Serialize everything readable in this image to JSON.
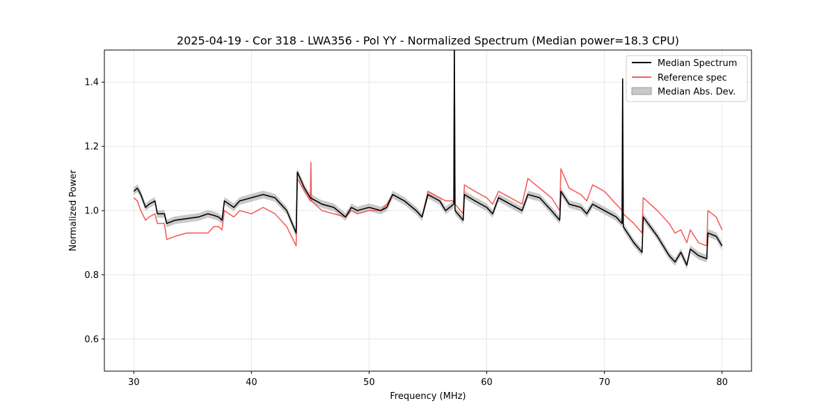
{
  "chart_data": {
    "type": "line",
    "title": "2025-04-19 - Cor 318 - LWA356 - Pol YY - Normalized Spectrum (Median power=18.3 CPU)",
    "xlabel": "Frequency (MHz)",
    "ylabel": "Normalized Power",
    "xlim": [
      27.5,
      82.5
    ],
    "ylim": [
      0.5,
      1.5
    ],
    "xticks": [
      30,
      40,
      50,
      60,
      70,
      80
    ],
    "yticks": [
      0.6,
      0.8,
      1.0,
      1.2,
      1.4
    ],
    "xtick_labels": [
      "30",
      "40",
      "50",
      "60",
      "70",
      "80"
    ],
    "ytick_labels": [
      "0.6",
      "0.8",
      "1.0",
      "1.2",
      "1.4"
    ],
    "grid": true,
    "legend_position": "top-right",
    "legend": [
      "Median Spectrum",
      "Reference spec",
      "Median Abs. Dev."
    ],
    "colors": {
      "median": "#000000",
      "reference": "#f25f5c",
      "mad": "#bfbfbf",
      "grid": "#e6e6e6"
    },
    "series": [
      {
        "name": "Median Spectrum",
        "points": [
          [
            30.0,
            1.06
          ],
          [
            30.3,
            1.07
          ],
          [
            30.6,
            1.05
          ],
          [
            31.0,
            1.01
          ],
          [
            31.3,
            1.02
          ],
          [
            31.8,
            1.03
          ],
          [
            32.0,
            0.99
          ],
          [
            32.6,
            0.99
          ],
          [
            32.8,
            0.96
          ],
          [
            33.5,
            0.97
          ],
          [
            34.5,
            0.975
          ],
          [
            35.5,
            0.98
          ],
          [
            36.3,
            0.99
          ],
          [
            36.8,
            0.985
          ],
          [
            37.2,
            0.98
          ],
          [
            37.5,
            0.97
          ],
          [
            37.7,
            1.03
          ],
          [
            38.5,
            1.01
          ],
          [
            39.0,
            1.03
          ],
          [
            40.0,
            1.04
          ],
          [
            41.0,
            1.05
          ],
          [
            42.0,
            1.04
          ],
          [
            42.5,
            1.02
          ],
          [
            43.0,
            1.0
          ],
          [
            43.8,
            0.93
          ],
          [
            43.9,
            1.12
          ],
          [
            44.5,
            1.07
          ],
          [
            45.0,
            1.04
          ],
          [
            46.0,
            1.02
          ],
          [
            47.0,
            1.01
          ],
          [
            48.0,
            0.98
          ],
          [
            48.5,
            1.01
          ],
          [
            49.0,
            1.0
          ],
          [
            50.0,
            1.01
          ],
          [
            51.0,
            1.0
          ],
          [
            51.5,
            1.01
          ],
          [
            52.0,
            1.05
          ],
          [
            53.0,
            1.03
          ],
          [
            54.0,
            1.0
          ],
          [
            54.5,
            0.98
          ],
          [
            55.0,
            1.05
          ],
          [
            56.0,
            1.03
          ],
          [
            56.5,
            1.0
          ],
          [
            57.2,
            1.02
          ],
          [
            57.25,
            1.5
          ],
          [
            57.3,
            1.0
          ],
          [
            58.0,
            0.97
          ],
          [
            58.1,
            1.05
          ],
          [
            59.0,
            1.03
          ],
          [
            60.0,
            1.01
          ],
          [
            60.5,
            0.99
          ],
          [
            61.0,
            1.04
          ],
          [
            62.0,
            1.02
          ],
          [
            63.0,
            1.0
          ],
          [
            63.5,
            1.05
          ],
          [
            64.5,
            1.04
          ],
          [
            65.5,
            1.0
          ],
          [
            66.2,
            0.97
          ],
          [
            66.3,
            1.06
          ],
          [
            67.0,
            1.02
          ],
          [
            68.0,
            1.01
          ],
          [
            68.5,
            0.99
          ],
          [
            69.0,
            1.02
          ],
          [
            70.0,
            1.0
          ],
          [
            71.0,
            0.98
          ],
          [
            71.5,
            0.96
          ],
          [
            71.55,
            1.41
          ],
          [
            71.6,
            0.95
          ],
          [
            72.5,
            0.9
          ],
          [
            73.2,
            0.87
          ],
          [
            73.3,
            0.98
          ],
          [
            74.5,
            0.92
          ],
          [
            75.5,
            0.86
          ],
          [
            76.0,
            0.84
          ],
          [
            76.5,
            0.87
          ],
          [
            77.0,
            0.83
          ],
          [
            77.3,
            0.88
          ],
          [
            78.0,
            0.86
          ],
          [
            78.7,
            0.85
          ],
          [
            78.8,
            0.93
          ],
          [
            79.5,
            0.92
          ],
          [
            80.0,
            0.89
          ]
        ]
      },
      {
        "name": "Reference spec",
        "points": [
          [
            30.0,
            1.04
          ],
          [
            30.3,
            1.03
          ],
          [
            30.6,
            1.0
          ],
          [
            31.0,
            0.97
          ],
          [
            31.3,
            0.98
          ],
          [
            31.8,
            0.99
          ],
          [
            32.0,
            0.96
          ],
          [
            32.6,
            0.96
          ],
          [
            32.8,
            0.91
          ],
          [
            33.5,
            0.92
          ],
          [
            34.5,
            0.93
          ],
          [
            35.5,
            0.93
          ],
          [
            36.3,
            0.93
          ],
          [
            36.8,
            0.95
          ],
          [
            37.2,
            0.95
          ],
          [
            37.5,
            0.94
          ],
          [
            37.7,
            1.0
          ],
          [
            38.5,
            0.98
          ],
          [
            39.0,
            1.0
          ],
          [
            40.0,
            0.99
          ],
          [
            41.0,
            1.01
          ],
          [
            42.0,
            0.99
          ],
          [
            42.5,
            0.97
          ],
          [
            43.0,
            0.95
          ],
          [
            43.8,
            0.89
          ],
          [
            43.9,
            1.1
          ],
          [
            44.5,
            1.06
          ],
          [
            45.0,
            1.03
          ],
          [
            45.05,
            1.15
          ],
          [
            45.1,
            1.03
          ],
          [
            46.0,
            1.0
          ],
          [
            47.0,
            0.99
          ],
          [
            48.0,
            0.98
          ],
          [
            48.5,
            1.0
          ],
          [
            49.0,
            0.99
          ],
          [
            50.0,
            1.0
          ],
          [
            51.0,
            1.0
          ],
          [
            51.5,
            1.02
          ],
          [
            52.0,
            1.05
          ],
          [
            53.0,
            1.03
          ],
          [
            54.0,
            1.0
          ],
          [
            54.5,
            0.98
          ],
          [
            55.0,
            1.06
          ],
          [
            56.0,
            1.04
          ],
          [
            56.5,
            1.03
          ],
          [
            57.2,
            1.03
          ],
          [
            57.25,
            1.5
          ],
          [
            57.3,
            1.02
          ],
          [
            58.0,
            0.99
          ],
          [
            58.1,
            1.08
          ],
          [
            59.0,
            1.06
          ],
          [
            60.0,
            1.04
          ],
          [
            60.5,
            1.02
          ],
          [
            61.0,
            1.06
          ],
          [
            62.0,
            1.04
          ],
          [
            63.0,
            1.02
          ],
          [
            63.5,
            1.1
          ],
          [
            64.5,
            1.07
          ],
          [
            65.5,
            1.04
          ],
          [
            66.2,
            1.0
          ],
          [
            66.3,
            1.13
          ],
          [
            67.0,
            1.07
          ],
          [
            68.0,
            1.05
          ],
          [
            68.5,
            1.03
          ],
          [
            69.0,
            1.08
          ],
          [
            70.0,
            1.06
          ],
          [
            71.0,
            1.02
          ],
          [
            71.5,
            1.0
          ],
          [
            71.55,
            1.24
          ],
          [
            71.6,
            0.99
          ],
          [
            72.5,
            0.96
          ],
          [
            73.2,
            0.93
          ],
          [
            73.3,
            1.04
          ],
          [
            74.5,
            1.0
          ],
          [
            75.5,
            0.96
          ],
          [
            76.0,
            0.93
          ],
          [
            76.5,
            0.94
          ],
          [
            77.0,
            0.9
          ],
          [
            77.3,
            0.94
          ],
          [
            78.0,
            0.9
          ],
          [
            78.7,
            0.89
          ],
          [
            78.8,
            1.0
          ],
          [
            79.5,
            0.98
          ],
          [
            80.0,
            0.94
          ]
        ]
      },
      {
        "name": "Median Abs. Dev.",
        "band_halfwidth": 0.012
      }
    ]
  }
}
